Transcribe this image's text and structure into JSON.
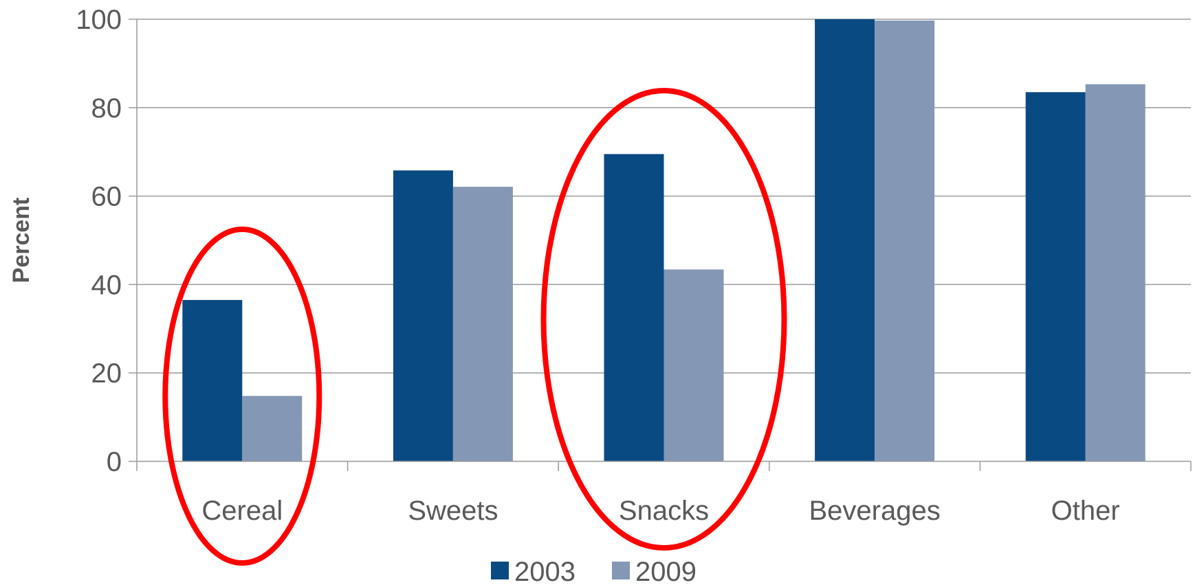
{
  "chart_data": {
    "type": "bar",
    "categories": [
      "Cereal",
      "Sweets",
      "Snacks",
      "Beverages",
      "Other"
    ],
    "series": [
      {
        "name": "2003",
        "values": [
          36.5,
          65.8,
          69.5,
          100,
          83.5
        ],
        "color": "#0a4a82"
      },
      {
        "name": "2009",
        "values": [
          14.8,
          62.1,
          43.4,
          99.7,
          85.3
        ],
        "color": "#8497b5"
      }
    ],
    "title": "",
    "xlabel": "",
    "ylabel": "Percent",
    "ylim": [
      0,
      100
    ],
    "yticks": [
      0,
      20,
      40,
      60,
      80,
      100
    ],
    "grid": true,
    "legend_position": "bottom",
    "annotations": [
      {
        "type": "ellipse",
        "target_category": "Cereal",
        "color": "#ff0000"
      },
      {
        "type": "ellipse",
        "target_category": "Snacks",
        "color": "#ff0000"
      }
    ]
  }
}
